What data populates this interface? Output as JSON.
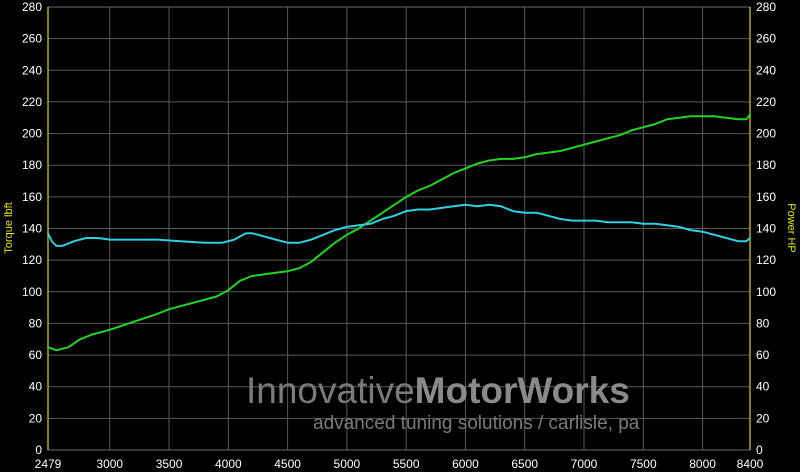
{
  "chart_data": {
    "type": "line",
    "title": "",
    "xlabel": "",
    "ylabel_left": "Torque lbft",
    "ylabel_right": "Power HP",
    "xlim": [
      2479,
      8400
    ],
    "ylim": [
      0,
      280
    ],
    "x_ticks": [
      "2479",
      "3000",
      "3500",
      "4000",
      "4500",
      "5000",
      "5500",
      "6000",
      "6500",
      "7000",
      "7500",
      "8000",
      "8400"
    ],
    "y_ticks": [
      "0",
      "20",
      "40",
      "60",
      "80",
      "100",
      "120",
      "140",
      "160",
      "180",
      "200",
      "220",
      "240",
      "260",
      "280"
    ],
    "grid": true,
    "background": "#000000",
    "series": [
      {
        "color": "#22d422",
        "x": [
          2479,
          2550,
          2650,
          2750,
          2850,
          3000,
          3200,
          3400,
          3500,
          3700,
          3900,
          4000,
          4100,
          4200,
          4300,
          4400,
          4500,
          4600,
          4700,
          4800,
          4900,
          5000,
          5100,
          5200,
          5300,
          5400,
          5500,
          5600,
          5700,
          5800,
          5900,
          6000,
          6100,
          6200,
          6300,
          6400,
          6500,
          6600,
          6700,
          6800,
          6900,
          7000,
          7100,
          7200,
          7300,
          7400,
          7500,
          7600,
          7700,
          7800,
          7900,
          8000,
          8100,
          8200,
          8300,
          8370,
          8400
        ],
        "y": [
          65,
          63,
          65,
          70,
          73,
          76,
          81,
          86,
          89,
          93,
          97,
          101,
          107,
          110,
          111,
          112,
          113,
          115,
          119,
          125,
          131,
          136,
          140,
          145,
          150,
          155,
          160,
          164,
          167,
          171,
          175,
          178,
          181,
          183,
          184,
          184,
          185,
          187,
          188,
          189,
          191,
          193,
          195,
          197,
          199,
          202,
          204,
          206,
          209,
          210,
          211,
          211,
          211,
          210,
          209,
          209,
          212
        ]
      },
      {
        "color": "#2ed0e0",
        "x": [
          2479,
          2510,
          2550,
          2600,
          2700,
          2800,
          2900,
          3000,
          3200,
          3400,
          3600,
          3800,
          3950,
          4050,
          4100,
          4150,
          4200,
          4300,
          4400,
          4500,
          4600,
          4700,
          4800,
          4900,
          5000,
          5100,
          5200,
          5300,
          5400,
          5500,
          5600,
          5700,
          5800,
          5900,
          6000,
          6100,
          6200,
          6300,
          6400,
          6500,
          6600,
          6700,
          6800,
          6900,
          7000,
          7100,
          7200,
          7300,
          7400,
          7500,
          7600,
          7700,
          7800,
          7900,
          8000,
          8100,
          8200,
          8300,
          8370,
          8400
        ],
        "y": [
          137,
          132,
          129,
          129,
          132,
          134,
          134,
          133,
          133,
          133,
          132,
          131,
          131,
          133,
          135,
          137,
          137,
          135,
          133,
          131,
          131,
          133,
          136,
          139,
          141,
          142,
          143,
          146,
          148,
          151,
          152,
          152,
          153,
          154,
          155,
          154,
          155,
          154,
          151,
          150,
          150,
          148,
          146,
          145,
          145,
          145,
          144,
          144,
          144,
          143,
          143,
          142,
          141,
          139,
          138,
          136,
          134,
          132,
          132,
          134
        ]
      }
    ]
  },
  "watermark": {
    "name_light": "Innovative",
    "name_bold": "MotorWorks",
    "tagline": "advanced tuning solutions / carlisle, pa"
  }
}
